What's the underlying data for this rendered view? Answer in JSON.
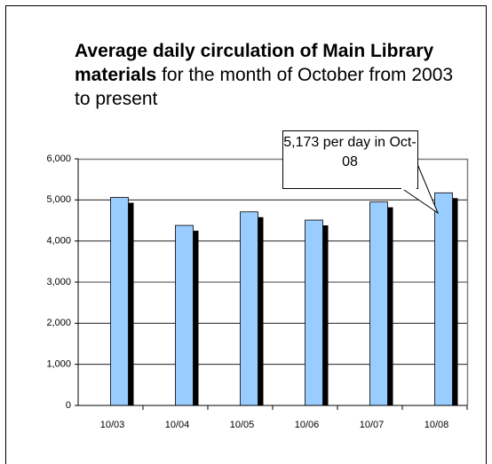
{
  "chart_data": {
    "type": "bar",
    "title": "Average daily circulation of Main Library materials",
    "subtitle": "for the month of October from 2003 to present",
    "annotation": "5,173 per day in Oct-08",
    "categories": [
      "10/03",
      "10/04",
      "10/05",
      "10/06",
      "10/07",
      "10/08"
    ],
    "values": [
      5060,
      4380,
      4710,
      4510,
      4950,
      5173
    ],
    "color": "#99ccff",
    "shadow_color": "#000000",
    "ylim": [
      0,
      6000
    ],
    "yticks": [
      0,
      {
        "value": 1000,
        "label": "1,000"
      },
      {
        "value": 2000,
        "label": "2,000"
      },
      {
        "value": 3000,
        "label": "3,000"
      },
      {
        "value": 4000,
        "label": "4,000"
      },
      {
        "value": 5000,
        "label": "5,000"
      },
      {
        "value": 6000,
        "label": "6,000"
      }
    ],
    "grid": true
  }
}
